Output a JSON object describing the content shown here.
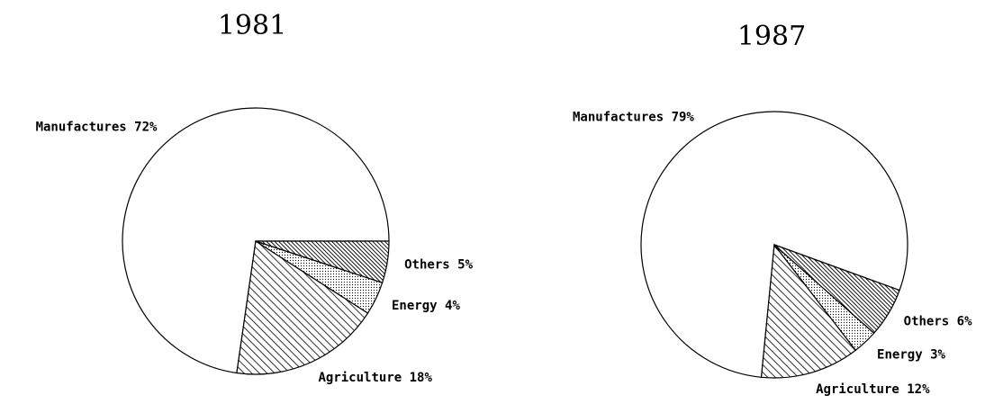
{
  "chart_data": [
    {
      "type": "pie",
      "title": "1981",
      "categories": [
        "Manufactures",
        "Agriculture",
        "Energy",
        "Others"
      ],
      "values": [
        72,
        18,
        4,
        5
      ],
      "value_labels": [
        "72%",
        "18%",
        "4%",
        "5%"
      ],
      "fills": [
        "none",
        "hatch",
        "dots",
        "dense-hatch"
      ],
      "startangle": 0
    },
    {
      "type": "pie",
      "title": "1987",
      "categories": [
        "Manufactures",
        "Agriculture",
        "Energy",
        "Others"
      ],
      "values": [
        79,
        12,
        3,
        6
      ],
      "value_labels": [
        "79%",
        "12%",
        "3%",
        "6%"
      ],
      "fills": [
        "none",
        "hatch",
        "dots",
        "dense-hatch"
      ],
      "startangle": -20
    }
  ]
}
